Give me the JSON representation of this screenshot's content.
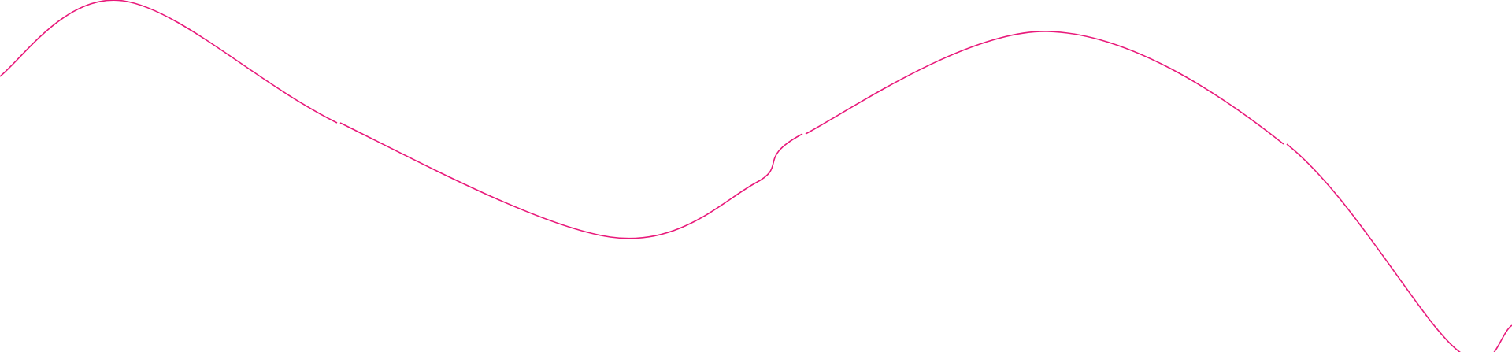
{
  "decoration": {
    "shape": "wavy-line",
    "stroke_color": "#e8197a",
    "background_color": "#ffffff"
  }
}
